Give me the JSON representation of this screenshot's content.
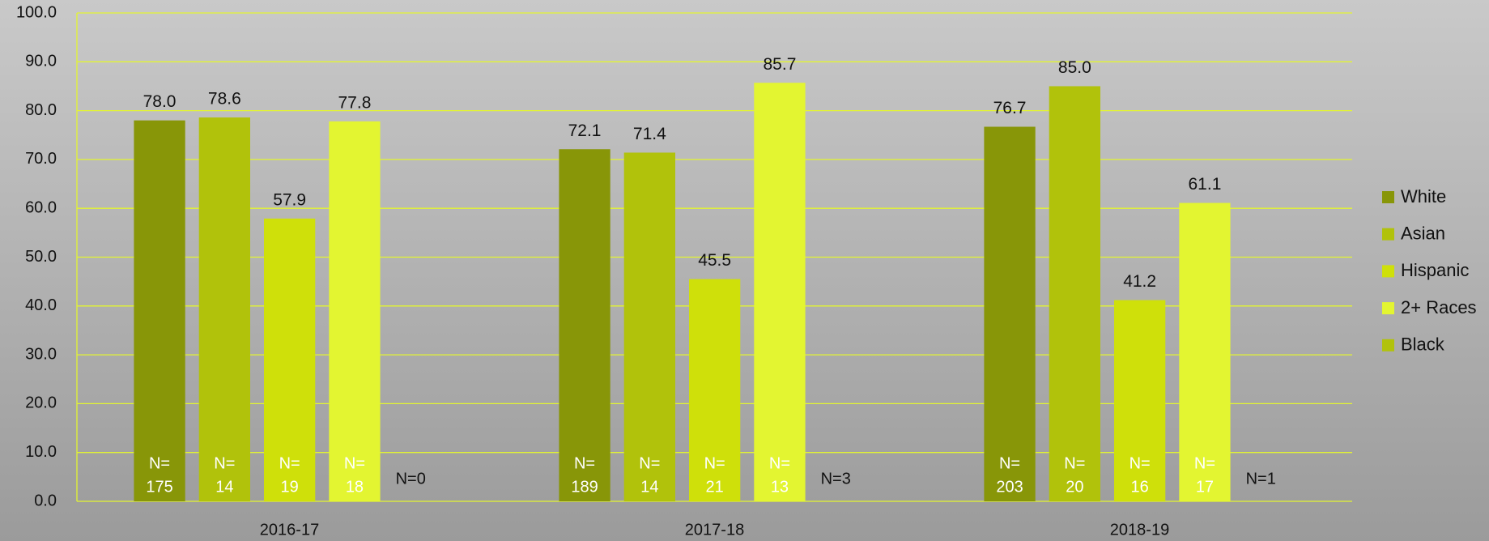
{
  "chart_data": {
    "type": "bar",
    "categories": [
      "2016-17",
      "2017-18",
      "2018-19"
    ],
    "series": [
      {
        "name": "White",
        "color": "#889608",
        "values": [
          78.0,
          72.1,
          76.7
        ],
        "value_labels": [
          "78.0",
          "72.1",
          "76.7"
        ],
        "n_labels": [
          [
            "N=",
            "175"
          ],
          [
            "N=",
            "189"
          ],
          [
            "N=",
            "203"
          ]
        ]
      },
      {
        "name": "Asian",
        "color": "#b1c20b",
        "values": [
          78.6,
          71.4,
          85.0
        ],
        "value_labels": [
          "78.6",
          "71.4",
          "85.0"
        ],
        "n_labels": [
          [
            "N=",
            "14"
          ],
          [
            "N=",
            "14"
          ],
          [
            "N=",
            "20"
          ]
        ]
      },
      {
        "name": "Hispanic",
        "color": "#cfe00a",
        "values": [
          57.9,
          45.5,
          41.2
        ],
        "value_labels": [
          "57.9",
          "45.5",
          "41.2"
        ],
        "n_labels": [
          [
            "N=",
            "19"
          ],
          [
            "N=",
            "21"
          ],
          [
            "N=",
            "16"
          ]
        ]
      },
      {
        "name": "2+ Races",
        "color": "#e3f531",
        "values": [
          77.8,
          85.7,
          61.1
        ],
        "value_labels": [
          "77.8",
          "85.7",
          "61.1"
        ],
        "n_labels": [
          [
            "N=",
            "18"
          ],
          [
            "N=",
            "13"
          ],
          [
            "N=",
            "17"
          ]
        ]
      },
      {
        "name": "Black",
        "color": "#b1c20b",
        "values": [
          null,
          null,
          null
        ],
        "n_labels": [
          [
            "N=0"
          ],
          [
            "N=3"
          ],
          [
            "N=1"
          ]
        ]
      }
    ],
    "ylim": [
      0,
      100
    ],
    "yticks": [
      {
        "value": 0,
        "label": "0.0"
      },
      {
        "value": 10,
        "label": "10.0"
      },
      {
        "value": 20,
        "label": "20.0"
      },
      {
        "value": 30,
        "label": "30.0"
      },
      {
        "value": 40,
        "label": "40.0"
      },
      {
        "value": 50,
        "label": "50.0"
      },
      {
        "value": 60,
        "label": "60.0"
      },
      {
        "value": 70,
        "label": "70.0"
      },
      {
        "value": 80,
        "label": "80.0"
      },
      {
        "value": 90,
        "label": "90.0"
      },
      {
        "value": 100,
        "label": "100.0"
      }
    ],
    "grid": true,
    "grid_color": "#e3f531",
    "legend": "right"
  }
}
